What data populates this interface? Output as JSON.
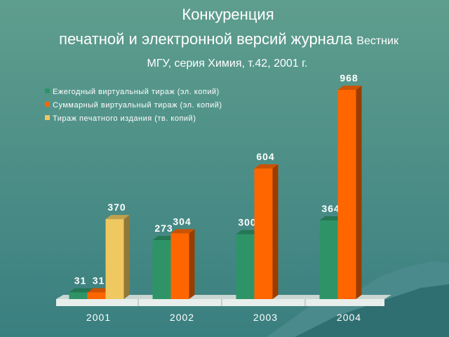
{
  "chart_data": {
    "type": "bar",
    "title": {
      "line1": "Конкуренция",
      "line2": "печатной и электронной версий журнала",
      "line2_small": "Вестник",
      "line3": "МГУ, серия Химия, т.42, 2001 г."
    },
    "categories": [
      "2001",
      "2002",
      "2003",
      "2004"
    ],
    "series": [
      {
        "name": "Ежегодный виртуальный тираж (эл. копий)",
        "color": "#2e9468",
        "values": [
          31,
          273,
          300,
          364
        ]
      },
      {
        "name": "Суммарный виртуальный тираж (эл. копий)",
        "color": "#ff6600",
        "values": [
          31,
          304,
          604,
          968
        ]
      },
      {
        "name": "Тираж печатного издания (тв. копий)",
        "color": "#f0c860",
        "values": [
          370,
          null,
          null,
          null
        ]
      }
    ],
    "legend": "upper-left"
  }
}
